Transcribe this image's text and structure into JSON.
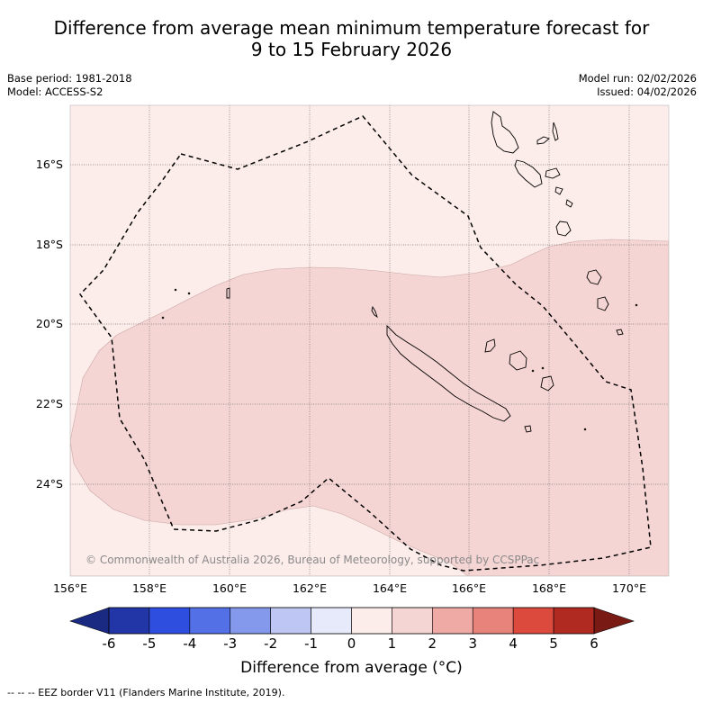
{
  "title": {
    "line1": "Difference from average mean minimum temperature forecast for",
    "line2": "9 to 15 February 2026"
  },
  "meta": {
    "base_period": "Base period: 1981-2018",
    "model": "Model: ACCESS-S2",
    "model_run": "Model run: 02/02/2026",
    "issued": "Issued: 04/02/2026"
  },
  "map": {
    "lat_labels": [
      "16°S",
      "18°S",
      "20°S",
      "22°S",
      "24°S"
    ],
    "lon_labels": [
      "156°E",
      "158°E",
      "160°E",
      "162°E",
      "164°E",
      "166°E",
      "168°E",
      "170°E"
    ],
    "copyright": "© Commonwealth of Australia 2026, Bureau of Meteorology, supported by CCSPPac",
    "fill_low": "#fcecea",
    "fill_high": "#f5d5d3"
  },
  "colorbar": {
    "ticks": [
      "-6",
      "-5",
      "-4",
      "-3",
      "-2",
      "-1",
      "0",
      "1",
      "2",
      "3",
      "4",
      "5",
      "6"
    ],
    "colors": [
      "#2236a8",
      "#2e4ee0",
      "#5470e6",
      "#8499ec",
      "#bec7f4",
      "#e6eafa",
      "#fcecea",
      "#f5d5d3",
      "#efaaa6",
      "#e8837c",
      "#dc4a3e",
      "#b12a22"
    ],
    "under_color": "#1a2a82",
    "over_color": "#7a1a14",
    "label": "Difference from average (°C)"
  },
  "footnote": "--  --  -- EEZ border V11 (Flanders Marine Institute, 2019)."
}
